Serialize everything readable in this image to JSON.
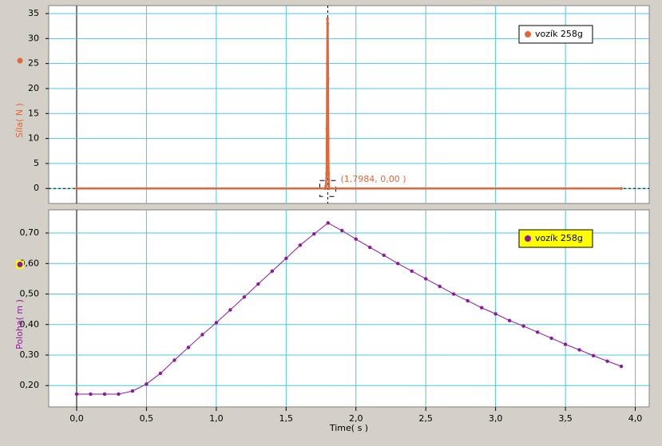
{
  "chart_data": [
    {
      "type": "line",
      "y_label": "Síla( N )",
      "color": "#e0673a",
      "grid": true,
      "xlim": [
        -0.2,
        4.1
      ],
      "ylim": [
        -3,
        36.6
      ],
      "yticks": [
        0,
        5,
        10,
        15,
        20,
        25,
        30,
        35
      ],
      "legend": "upper right",
      "legend_fill": "#ffffff",
      "series": [
        {
          "name": "vozík 258g",
          "color": "#e0673a",
          "x": [
            0.0,
            1.78,
            1.785,
            1.79,
            1.792,
            1.794,
            1.796,
            1.798,
            1.8,
            1.802,
            1.804,
            1.806,
            3.9
          ],
          "values": [
            0,
            0,
            0.5,
            3,
            12,
            25,
            34,
            33,
            22,
            10,
            3,
            0,
            0
          ]
        }
      ],
      "cursor": {
        "x": 1.7984,
        "y": 0,
        "label": "(1,7984, 0,00 )"
      }
    },
    {
      "type": "line",
      "x_label": "Time( s )",
      "y_label": "Poloha( m )",
      "color": "#8b1a9b",
      "grid": true,
      "xlim": [
        -0.2,
        4.1
      ],
      "ylim": [
        0.13,
        0.776
      ],
      "xticks": [
        {
          "value": 0,
          "label": "0,0"
        },
        {
          "value": 0.5,
          "label": "0,5"
        },
        {
          "value": 1,
          "label": "1,0"
        },
        {
          "value": 1.5,
          "label": "1,5"
        },
        {
          "value": 2,
          "label": "2,0"
        },
        {
          "value": 2.5,
          "label": "2,5"
        },
        {
          "value": 3,
          "label": "3,0"
        },
        {
          "value": 3.5,
          "label": "3,5"
        },
        {
          "value": 4,
          "label": "4,0"
        }
      ],
      "yticks": [
        {
          "value": 0.2,
          "label": "0,20"
        },
        {
          "value": 0.3,
          "label": "0,30"
        },
        {
          "value": 0.4,
          "label": "0,40"
        },
        {
          "value": 0.5,
          "label": "0,50"
        },
        {
          "value": 0.6,
          "label": "0,60"
        },
        {
          "value": 0.7,
          "label": "0,70"
        }
      ],
      "legend": "upper right",
      "legend_fill": "#ffff00",
      "series": [
        {
          "name": "vozík 258g",
          "color": "#8b1a9b",
          "x": [
            0.0,
            0.1,
            0.2,
            0.3,
            0.4,
            0.5,
            0.6,
            0.7,
            0.8,
            0.9,
            1.0,
            1.1,
            1.2,
            1.3,
            1.4,
            1.5,
            1.6,
            1.7,
            1.8,
            1.9,
            2.0,
            2.1,
            2.2,
            2.3,
            2.4,
            2.5,
            2.6,
            2.7,
            2.8,
            2.9,
            3.0,
            3.1,
            3.2,
            3.3,
            3.4,
            3.5,
            3.6,
            3.7,
            3.8,
            3.9
          ],
          "values": [
            0.172,
            0.172,
            0.172,
            0.172,
            0.182,
            0.205,
            0.24,
            0.283,
            0.325,
            0.367,
            0.406,
            0.448,
            0.49,
            0.533,
            0.575,
            0.617,
            0.66,
            0.697,
            0.733,
            0.708,
            0.68,
            0.653,
            0.627,
            0.6,
            0.575,
            0.55,
            0.525,
            0.5,
            0.478,
            0.455,
            0.435,
            0.413,
            0.395,
            0.375,
            0.355,
            0.335,
            0.317,
            0.298,
            0.28,
            0.263
          ]
        }
      ]
    }
  ]
}
